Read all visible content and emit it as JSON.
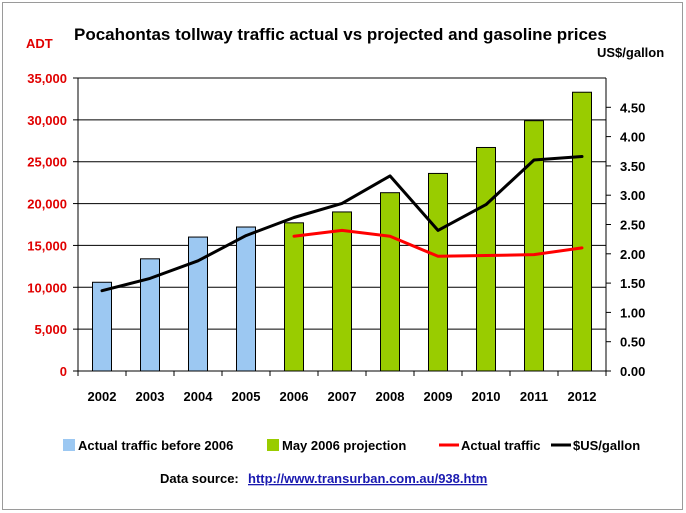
{
  "chart_data": {
    "type": "bar",
    "title": "Pocahontas tollway traffic actual vs projected and gasoline prices",
    "ylabel_left": "ADT",
    "ylabel_right": "US$/gallon",
    "categories": [
      "2002",
      "2003",
      "2004",
      "2005",
      "2006",
      "2007",
      "2008",
      "2009",
      "2010",
      "2011",
      "2012"
    ],
    "ylim_left": [
      0,
      35000
    ],
    "yticks_left": [
      "0",
      "5,000",
      "10,000",
      "15,000",
      "20,000",
      "25,000",
      "30,000",
      "35,000"
    ],
    "ylim_right": [
      0,
      5.0
    ],
    "yticks_right": [
      "0.00",
      "0.50",
      "1.00",
      "1.50",
      "2.00",
      "2.50",
      "3.00",
      "3.50",
      "4.00",
      "4.50"
    ],
    "grid": true,
    "legend_position": "bottom",
    "series": [
      {
        "name": "Actual traffic before 2006",
        "kind": "bar",
        "axis": "left",
        "color": "#9cc8f2",
        "values": [
          10600,
          13400,
          16000,
          17200,
          null,
          null,
          null,
          null,
          null,
          null,
          null
        ]
      },
      {
        "name": "May 2006 projection",
        "kind": "bar",
        "axis": "left",
        "color": "#99cc00",
        "values": [
          null,
          null,
          null,
          null,
          17700,
          19000,
          21300,
          23600,
          26700,
          29900,
          33300
        ]
      },
      {
        "name": "Actual traffic",
        "kind": "line",
        "axis": "left",
        "color": "#ff0000",
        "values": [
          null,
          null,
          null,
          null,
          16100,
          16800,
          16100,
          13700,
          13800,
          13900,
          14700
        ]
      },
      {
        "name": "$US/gallon",
        "kind": "line",
        "axis": "right",
        "color": "#000000",
        "values": [
          1.37,
          1.58,
          1.88,
          2.31,
          2.62,
          2.86,
          3.33,
          2.4,
          2.84,
          3.6,
          3.66
        ]
      }
    ],
    "source_label": "Data source:",
    "source_url": "http://www.transurban.com.au/938.htm"
  }
}
